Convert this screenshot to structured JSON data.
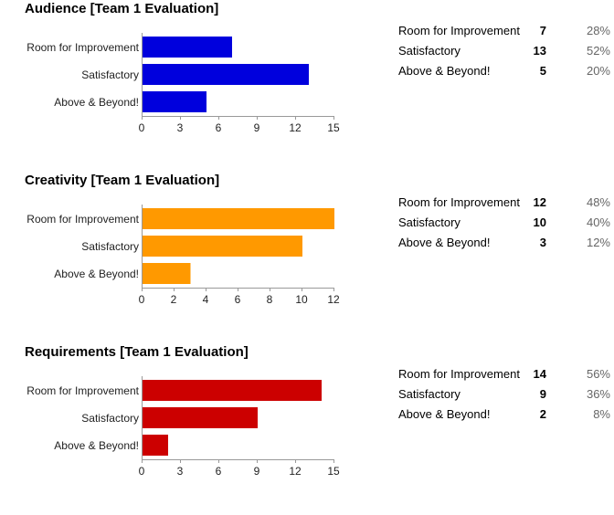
{
  "chart_data": [
    {
      "type": "bar",
      "orientation": "horizontal",
      "title": "Audience [Team 1 Evaluation]",
      "categories": [
        "Room for Improvement",
        "Satisfactory",
        "Above & Beyond!"
      ],
      "values": [
        7,
        13,
        5
      ],
      "percents": [
        "28%",
        "52%",
        "20%"
      ],
      "xlim": [
        0,
        15
      ],
      "xticks": [
        0,
        3,
        6,
        9,
        12,
        15
      ],
      "color": "#0000dd"
    },
    {
      "type": "bar",
      "orientation": "horizontal",
      "title": "Creativity [Team 1 Evaluation]",
      "categories": [
        "Room for Improvement",
        "Satisfactory",
        "Above & Beyond!"
      ],
      "values": [
        12,
        10,
        3
      ],
      "percents": [
        "48%",
        "40%",
        "12%"
      ],
      "xlim": [
        0,
        12
      ],
      "xticks": [
        0,
        2,
        4,
        6,
        8,
        10,
        12
      ],
      "color": "#ff9900"
    },
    {
      "type": "bar",
      "orientation": "horizontal",
      "title": "Requirements [Team 1 Evaluation]",
      "categories": [
        "Room for Improvement",
        "Satisfactory",
        "Above & Beyond!"
      ],
      "values": [
        14,
        9,
        2
      ],
      "percents": [
        "56%",
        "36%",
        "8%"
      ],
      "xlim": [
        0,
        15
      ],
      "xticks": [
        0,
        3,
        6,
        9,
        12,
        15
      ],
      "color": "#cc0000"
    }
  ]
}
